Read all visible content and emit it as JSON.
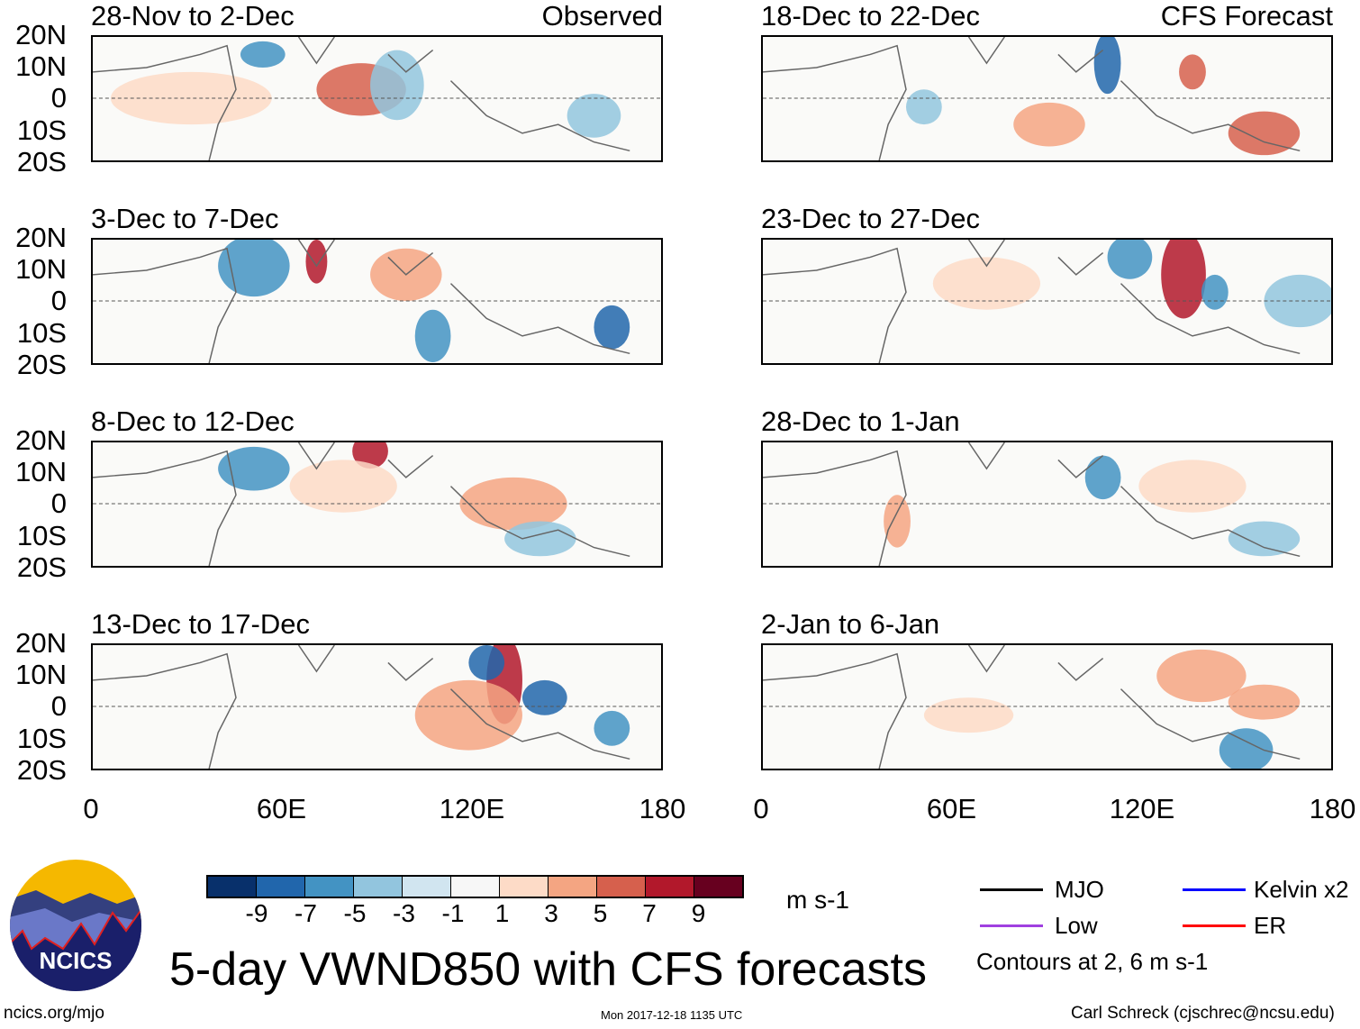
{
  "panels": [
    {
      "title": "28-Nov to 2-Dec",
      "tag": "Observed"
    },
    {
      "title": "3-Dec to 7-Dec"
    },
    {
      "title": "8-Dec to 12-Dec"
    },
    {
      "title": "13-Dec to 17-Dec"
    },
    {
      "title": "18-Dec to 22-Dec",
      "tag": "CFS Forecast"
    },
    {
      "title": "23-Dec to 27-Dec"
    },
    {
      "title": "28-Dec to 1-Jan"
    },
    {
      "title": "2-Jan to 6-Jan"
    }
  ],
  "lat_labels": [
    "20N",
    "10N",
    "0",
    "10S",
    "20S"
  ],
  "lon_labels": [
    "0",
    "60E",
    "120E",
    "180"
  ],
  "colorbar": {
    "colors": [
      "#08306b",
      "#2166ac",
      "#4393c3",
      "#92c5de",
      "#d1e5f0",
      "#f7f7f7",
      "#fddbc7",
      "#f4a582",
      "#d6604d",
      "#b2182b",
      "#67001f"
    ],
    "labels": [
      "-9",
      "-7",
      "-5",
      "-3",
      "-1",
      "1",
      "3",
      "5",
      "7",
      "9"
    ],
    "units": "m s-1"
  },
  "legend": {
    "items": [
      {
        "label": "MJO",
        "color": "#000000"
      },
      {
        "label": "Kelvin x2",
        "color": "#0000ff"
      },
      {
        "label": "Low",
        "color": "#a040e0"
      },
      {
        "label": "ER",
        "color": "#ff0000"
      }
    ],
    "contours": "Contours at 2, 6 m s-1"
  },
  "title": "5-day VWND850 with CFS forecasts",
  "logo_text": "NCICS",
  "footer": {
    "url": "ncics.org/mjo",
    "timestamp": "Mon 2017-12-18 1135 UTC",
    "credit": "Carl Schreck (cjschrec@ncsu.edu)"
  }
}
